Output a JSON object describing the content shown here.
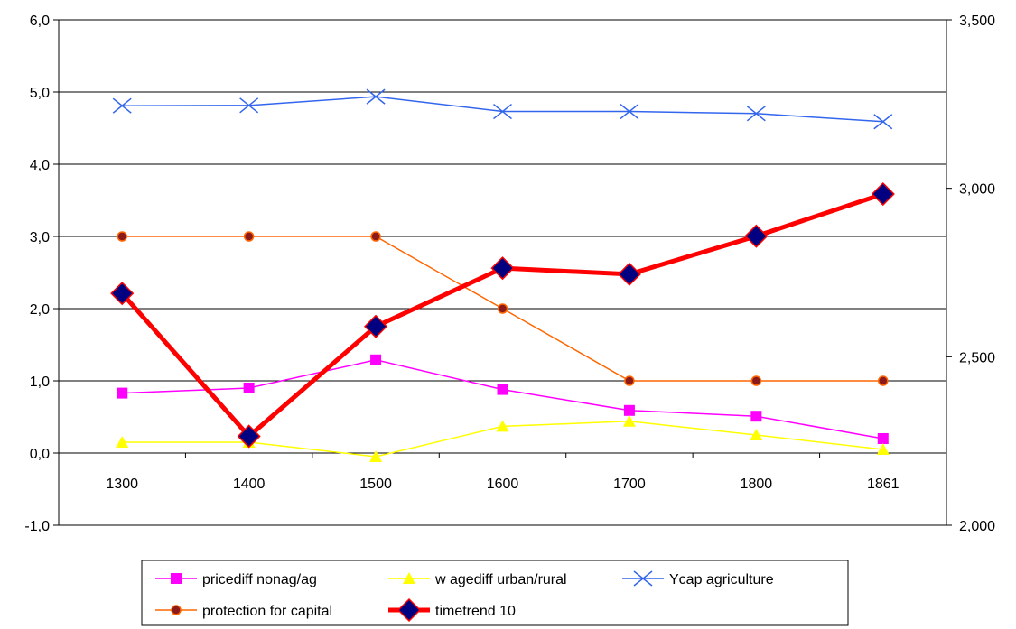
{
  "chart_data": {
    "type": "line",
    "categories": [
      "1300",
      "1400",
      "1500",
      "1600",
      "1700",
      "1800",
      "1861"
    ],
    "left_axis": {
      "ylim": [
        -1.0,
        6.0
      ],
      "ticks": [
        -1.0,
        0.0,
        1.0,
        2.0,
        3.0,
        4.0,
        5.0,
        6.0
      ],
      "tick_labels": [
        "-1,0",
        "0,0",
        "1,0",
        "2,0",
        "3,0",
        "4,0",
        "5,0",
        "6,0"
      ]
    },
    "right_axis": {
      "ylim": [
        2000,
        3500
      ],
      "ticks": [
        2000,
        2500,
        3000,
        3500
      ],
      "tick_labels": [
        "2,000",
        "2,500",
        "3,000",
        "3,500"
      ]
    },
    "grid": "horizontal major gridlines",
    "legend_placement": "bottom",
    "series": [
      {
        "name": "pricediff nonag/ag",
        "axis": "left",
        "color": "#ff00ff",
        "marker": "square",
        "values": [
          0.83,
          0.9,
          1.29,
          0.88,
          0.59,
          0.51,
          0.2
        ]
      },
      {
        "name": "w agediff urban/rural",
        "axis": "left",
        "color": "#ffff00",
        "marker": "triangle",
        "values": [
          0.15,
          0.15,
          -0.05,
          0.37,
          0.44,
          0.25,
          0.05
        ]
      },
      {
        "name": "Ycap agriculture",
        "axis": "right",
        "color": "#3366ee",
        "marker": "x",
        "values": [
          3245,
          3246,
          3272,
          3228,
          3228,
          3222,
          3198
        ]
      },
      {
        "name": "protection for capital",
        "axis": "left",
        "color": "#ff6600",
        "marker": "circle",
        "values": [
          3.0,
          3.0,
          3.0,
          2.0,
          1.0,
          1.0,
          1.0
        ]
      },
      {
        "name": "timetrend 10",
        "axis": "right",
        "color": "#ff0000",
        "marker": "diamond",
        "values": [
          2688,
          2264,
          2590,
          2763,
          2745,
          2858,
          2983
        ]
      }
    ]
  }
}
